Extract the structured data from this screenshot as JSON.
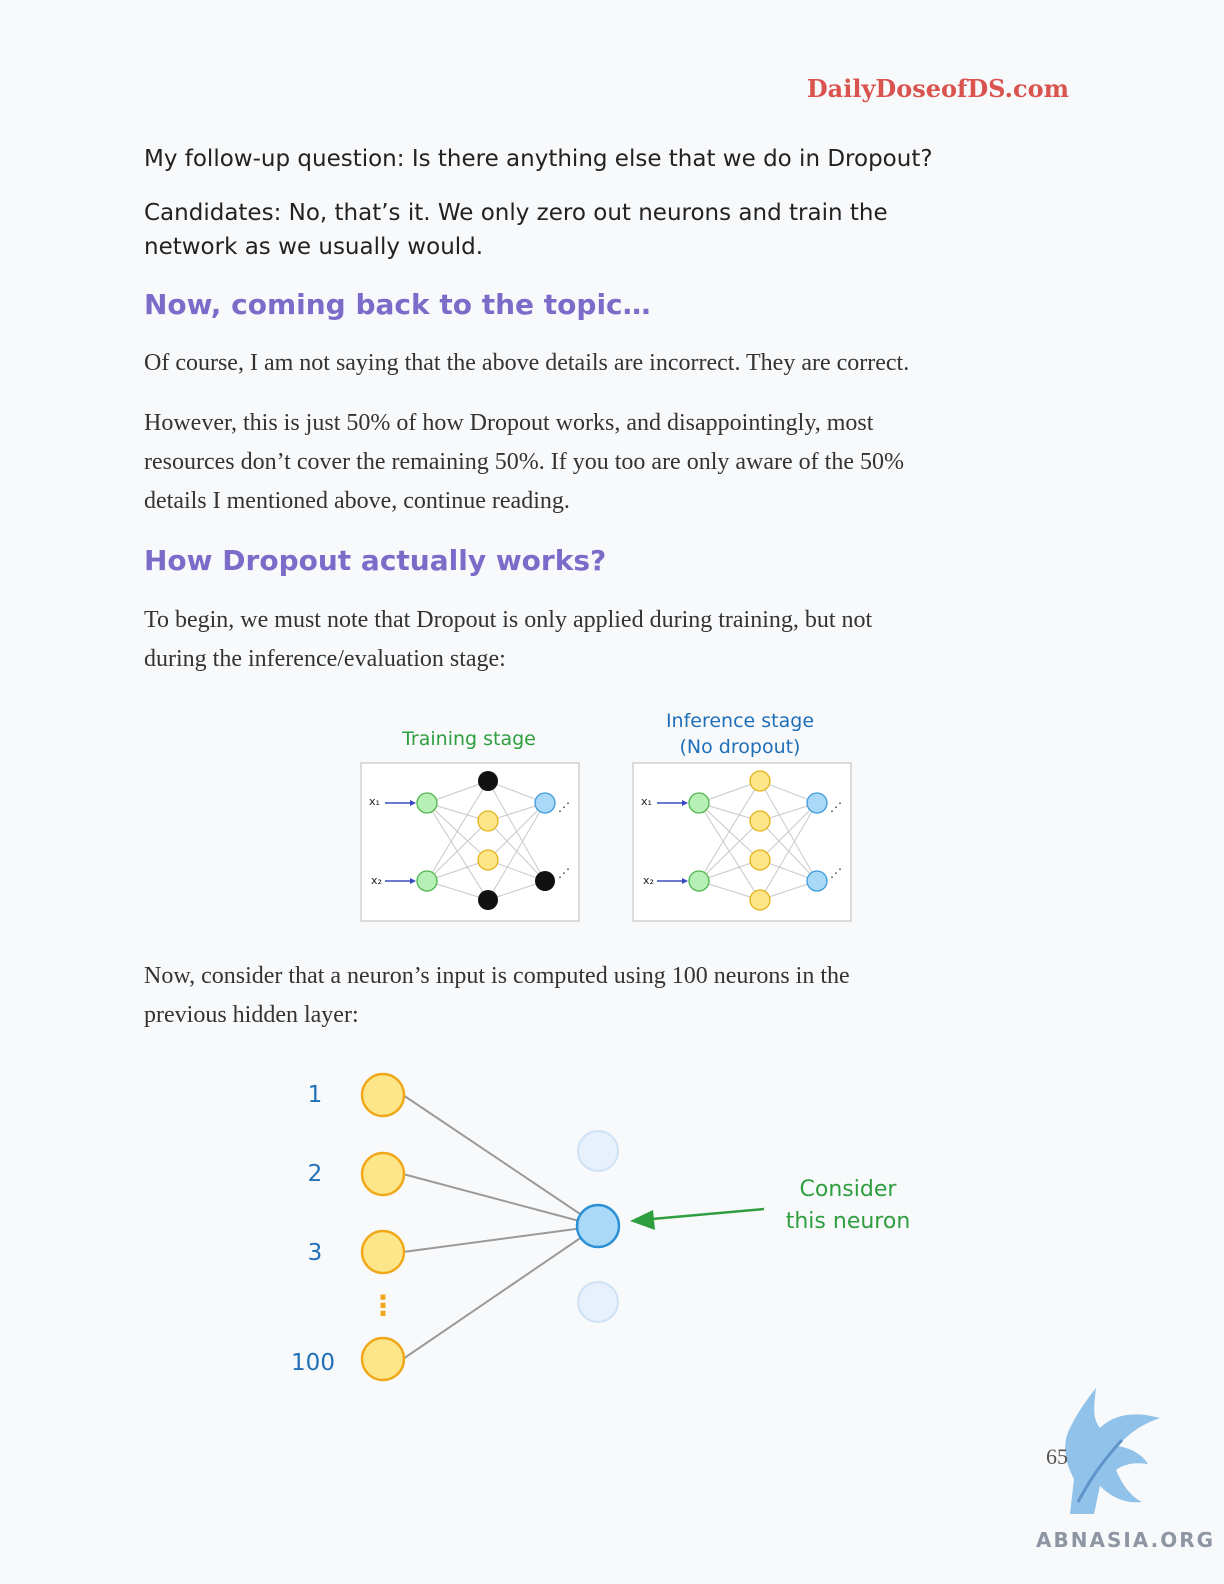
{
  "header": {
    "site": "DailyDoseofDS.com"
  },
  "dialog": {
    "question": "My follow-up question: Is there anything else that we do in Dropout?",
    "answer_line1": "Candidates: No, that’s it. We only zero out neurons and train the",
    "answer_line2": "network as we usually would."
  },
  "section1": {
    "heading": "Now, coming back to the topic…",
    "para1": "Of course, I am not saying that the above details are incorrect. They are correct.",
    "para2_line1": "However, this is just 50% of how Dropout works, and disappointingly, most",
    "para2_line2": "resources don’t cover the remaining 50%. If you too are only aware of the 50%",
    "para2_line3": "details I mentioned above, continue reading."
  },
  "section2": {
    "heading": "How Dropout actually works?",
    "para1_line1": "To begin, we must note that Dropout is only applied during training, but not",
    "para1_line2": "during the inference/evaluation stage:",
    "para2_line1": "Now, consider that a neuron’s input is computed using 100 neurons in the",
    "para2_line2": "previous hidden layer:"
  },
  "figure1": {
    "training_label": "Training stage",
    "inference_label_line1": "Inference stage",
    "inference_label_line2": "(No dropout)",
    "x1": "x₁",
    "x2": "x₂",
    "ellipsis": "⋰"
  },
  "figure2": {
    "label_1": "1",
    "label_2": "2",
    "label_3": "3",
    "label_100": "100",
    "vdots": "⋮",
    "note_line1": "Consider",
    "note_line2": "this neuron"
  },
  "footer": {
    "page_number": "65",
    "watermark": "ABNASIA.ORG"
  },
  "colors": {
    "heading": "#7b6cc9",
    "site": "#d9534f",
    "green_label": "#2e9e3e",
    "blue_label": "#1f6fb8"
  }
}
